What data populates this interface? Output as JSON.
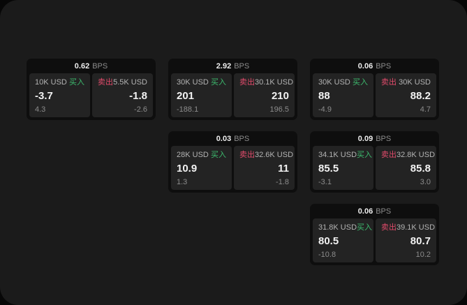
{
  "labels": {
    "bps_unit": "BPS",
    "buy": "买入",
    "sell": "卖出"
  },
  "colors": {
    "page_background": "#1b1b1b",
    "card_background": "#0e0e0e",
    "panel_background": "#232323",
    "buy_green": "#3dbb6e",
    "sell_red": "#e24b6b"
  },
  "cards": [
    {
      "bps": "0.62",
      "buy": {
        "amount": "10K USD",
        "value": "-3.7",
        "sub": "4.3"
      },
      "sell": {
        "amount": "5.5K USD",
        "value": "-1.8",
        "sub": "-2.6"
      }
    },
    {
      "bps": "2.92",
      "buy": {
        "amount": "30K USD",
        "value": "201",
        "sub": "-188.1"
      },
      "sell": {
        "amount": "30.1K USD",
        "value": "210",
        "sub": "196.5"
      }
    },
    {
      "bps": "0.06",
      "buy": {
        "amount": "30K USD",
        "value": "88",
        "sub": "-4.9"
      },
      "sell": {
        "amount": "30K USD",
        "value": "88.2",
        "sub": "4.7"
      }
    },
    {
      "bps": "0.03",
      "buy": {
        "amount": "28K USD",
        "value": "10.9",
        "sub": "1.3"
      },
      "sell": {
        "amount": "32.6K USD",
        "value": "11",
        "sub": "-1.8"
      }
    },
    {
      "bps": "0.09",
      "buy": {
        "amount": "34.1K USD",
        "value": "85.5",
        "sub": "-3.1"
      },
      "sell": {
        "amount": "32.8K USD",
        "value": "85.8",
        "sub": "3.0"
      }
    },
    {
      "bps": "0.06",
      "buy": {
        "amount": "31.8K USD",
        "value": "80.5",
        "sub": "-10.8"
      },
      "sell": {
        "amount": "39.1K USD",
        "value": "80.7",
        "sub": "10.2"
      }
    }
  ]
}
